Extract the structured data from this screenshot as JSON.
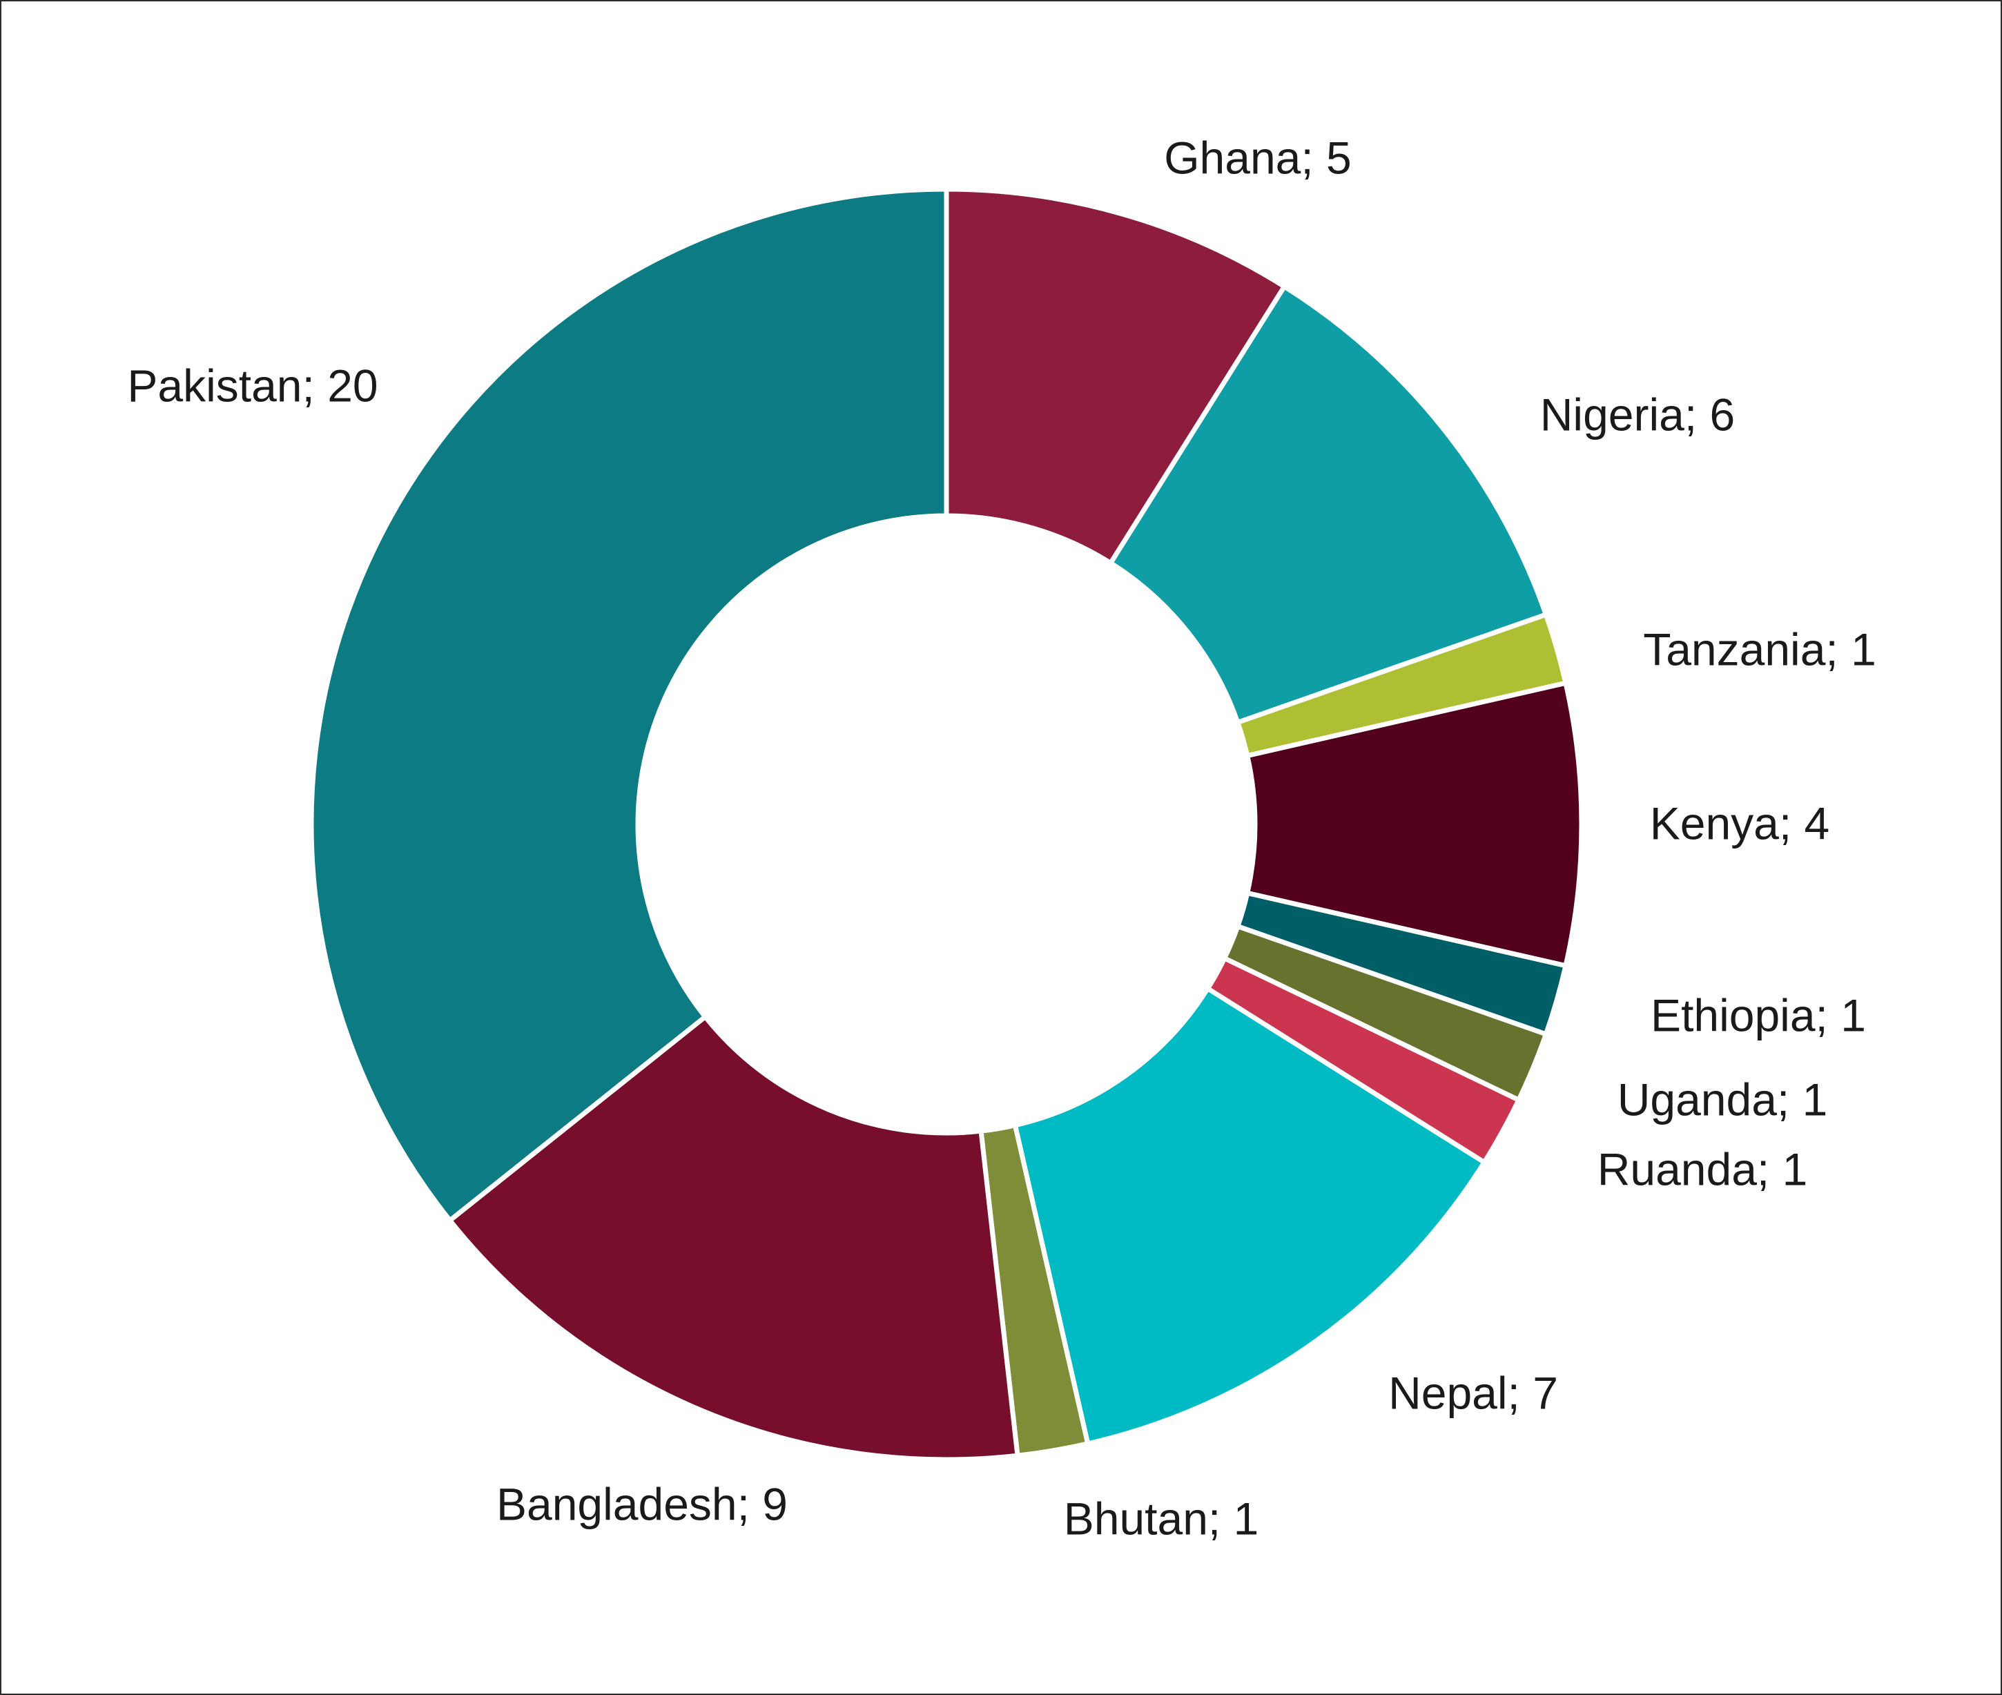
{
  "chart_data": {
    "type": "pie",
    "variant": "donut",
    "title": "",
    "slices": [
      {
        "name": "Ghana",
        "value": 5,
        "label": "Ghana; 5",
        "color": "#8E1C3C"
      },
      {
        "name": "Nigeria",
        "value": 6,
        "label": "Nigeria; 6",
        "color": "#0F9DA6"
      },
      {
        "name": "Tanzania",
        "value": 1,
        "label": "Tanzania; 1",
        "color": "#AEBF33"
      },
      {
        "name": "Kenya",
        "value": 4,
        "label": "Kenya; 4",
        "color": "#52001C"
      },
      {
        "name": "Ethiopia",
        "value": 1,
        "label": "Ethiopia; 1",
        "color": "#005F66"
      },
      {
        "name": "Uganda",
        "value": 1,
        "label": "Uganda; 1",
        "color": "#66722E"
      },
      {
        "name": "Ruanda",
        "value": 1,
        "label": "Ruanda; 1",
        "color": "#CC3550"
      },
      {
        "name": "Nepal",
        "value": 7,
        "label": "Nepal; 7",
        "color": "#00BAC4"
      },
      {
        "name": "Bhutan",
        "value": 1,
        "label": "Bhutan; 1",
        "color": "#7F8C38"
      },
      {
        "name": "Bangladesh",
        "value": 9,
        "label": "Bangladesh; 9",
        "color": "#760E2C"
      },
      {
        "name": "Pakistan",
        "value": 20,
        "label": "Pakistan; 20",
        "color": "#0D7B84"
      }
    ],
    "start_angle": "12 o'clock",
    "direction": "clockwise",
    "legend": "none",
    "label_placement": "outside"
  }
}
